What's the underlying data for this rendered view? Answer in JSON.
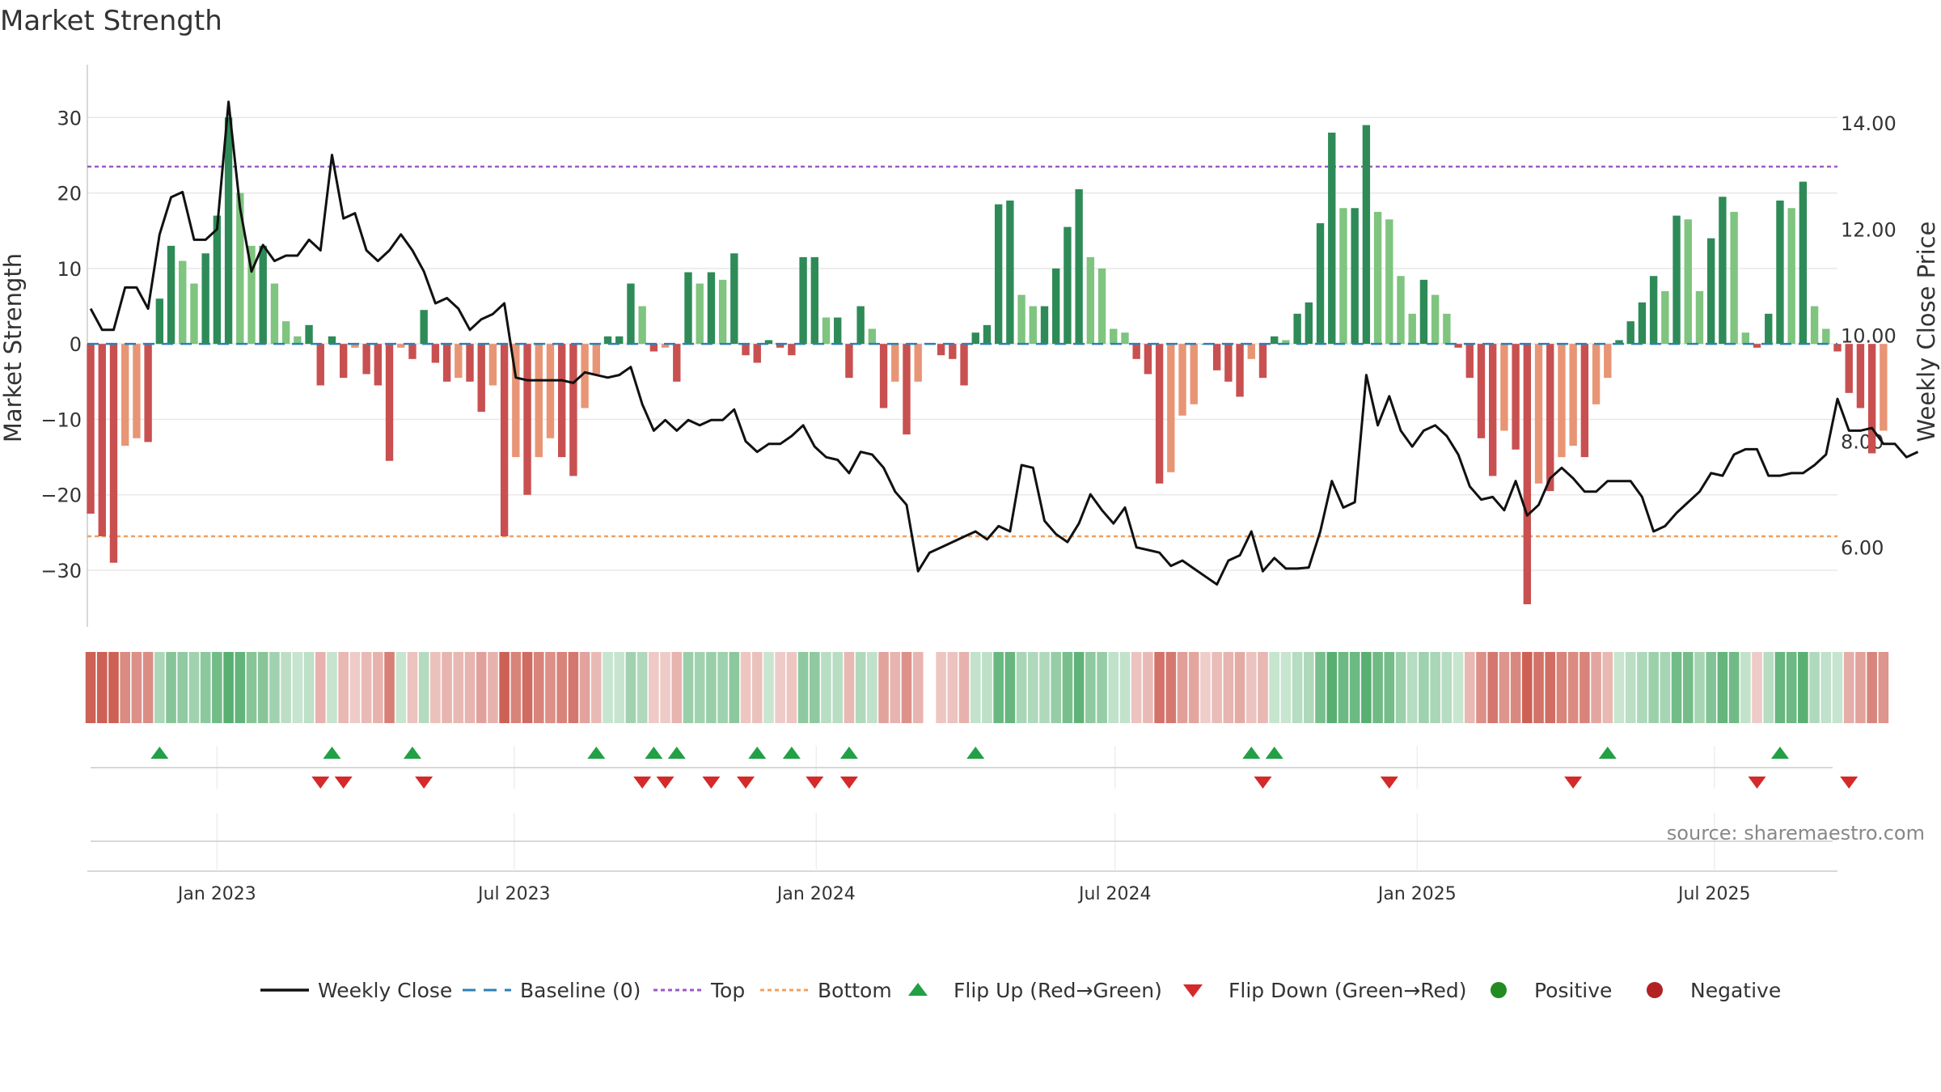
{
  "chart_data": {
    "type": "bar+line",
    "title": "Market Strength",
    "ylabel_left": "Market Strength",
    "ylabel_right": "Weekly Close Price",
    "source": "source: sharemaestro.com",
    "ylim_left": [
      -37.5,
      37
    ],
    "ylim_right": [
      4.5,
      15.1
    ],
    "y_ticks_left": [
      30,
      20,
      10,
      0,
      -10,
      -20,
      -30
    ],
    "y_tick_labels_left": [
      "30",
      "20",
      "10",
      "0",
      "−10",
      "−20",
      "−30"
    ],
    "y_ticks_right": [
      14,
      12,
      10,
      8,
      6
    ],
    "y_tick_labels_right": [
      "14.00",
      "12.00",
      "10.00",
      "8.00",
      "6.00"
    ],
    "x_start": "2022-10-14",
    "x_end": "2025-09-14",
    "x_ticks": [
      {
        "label": "Jan 2023",
        "date": "2023-01-01"
      },
      {
        "label": "Jul 2023",
        "date": "2023-07-01"
      },
      {
        "label": "Jan 2024",
        "date": "2024-01-01"
      },
      {
        "label": "Jul 2024",
        "date": "2024-07-01"
      },
      {
        "label": "Jan 2025",
        "date": "2025-01-01"
      },
      {
        "label": "Jul 2025",
        "date": "2025-07-01"
      }
    ],
    "first_week": "2022-10-16",
    "top_threshold": 23.5,
    "bottom_threshold": -25.5,
    "baseline": 0,
    "strength": [
      -22.5,
      -25.5,
      -29,
      -13.5,
      -12.5,
      -13,
      6,
      13,
      11,
      8,
      12,
      17,
      30,
      20,
      13,
      13,
      8,
      3,
      1,
      2.5,
      -5.5,
      1,
      -4.5,
      -0.5,
      -4,
      -5.5,
      -15.5,
      -0.5,
      -2,
      4.5,
      -2.5,
      -5,
      -4.5,
      -5,
      -9,
      -5.5,
      -25.5,
      -15,
      -20,
      -15,
      -12.5,
      -15,
      -17.5,
      -8.5,
      -4,
      1,
      1,
      8,
      5,
      -1,
      -0.5,
      -5,
      9.5,
      8,
      9.5,
      8.5,
      12,
      -1.5,
      -2.5,
      0.5,
      -0.5,
      -1.5,
      11.5,
      11.5,
      3.5,
      3.5,
      -4.5,
      5,
      2,
      -8.5,
      -5,
      -12,
      -5,
      0,
      -1.5,
      -2,
      -5.5,
      1.5,
      2.5,
      18.5,
      19,
      6.5,
      5,
      5,
      10,
      15.5,
      20.5,
      11.5,
      10,
      2,
      1.5,
      -2,
      -4,
      -18.5,
      -17,
      -9.5,
      -8,
      0,
      -3.5,
      -5,
      -7,
      -2,
      -4.5,
      1,
      0.5,
      4,
      5.5,
      16,
      28,
      18,
      18,
      29,
      17.5,
      16.5,
      9,
      4,
      8.5,
      6.5,
      4,
      -0.5,
      -4.5,
      -12.5,
      -17.5,
      -11.5,
      -14,
      -34.5,
      -18.5,
      -19.5,
      -15,
      -13.5,
      -15,
      -8,
      -4.5,
      0.5,
      3,
      5.5,
      9,
      7,
      17,
      16.5,
      7,
      14,
      19.5,
      17.5,
      1.5,
      -0.5,
      4,
      19,
      18,
      21.5,
      5,
      2,
      -1,
      -6.5,
      -8.5,
      -14.5,
      -11.5
    ],
    "weekly_close": [
      10.5,
      10.1,
      10.1,
      10.9,
      10.9,
      10.5,
      11.9,
      12.6,
      12.7,
      11.8,
      11.8,
      12.0,
      14.4,
      12.4,
      11.2,
      11.7,
      11.4,
      11.5,
      11.5,
      11.8,
      11.6,
      13.4,
      12.2,
      12.3,
      11.6,
      11.4,
      11.6,
      11.9,
      11.6,
      11.2,
      10.6,
      10.7,
      10.5,
      10.1,
      10.3,
      10.4,
      10.6,
      9.2,
      9.15,
      9.15,
      9.15,
      9.15,
      9.1,
      9.3,
      9.25,
      9.2,
      9.25,
      9.4,
      8.7,
      8.2,
      8.4,
      8.2,
      8.4,
      8.3,
      8.4,
      8.4,
      8.6,
      8.0,
      7.8,
      7.95,
      7.95,
      8.1,
      8.3,
      7.9,
      7.7,
      7.65,
      7.4,
      7.8,
      7.75,
      7.5,
      7.05,
      6.8,
      5.55,
      5.9,
      6.0,
      6.1,
      6.2,
      6.3,
      6.15,
      6.4,
      6.3,
      7.55,
      7.5,
      6.5,
      6.25,
      6.1,
      6.45,
      7.0,
      6.7,
      6.45,
      6.75,
      6.0,
      5.95,
      5.9,
      5.65,
      5.75,
      5.6,
      5.45,
      5.3,
      5.75,
      5.85,
      6.3,
      5.55,
      5.8,
      5.6,
      5.6,
      5.62,
      6.3,
      7.25,
      6.75,
      6.85,
      9.25,
      8.3,
      8.85,
      8.2,
      7.9,
      8.2,
      8.3,
      8.1,
      7.75,
      7.15,
      6.9,
      6.95,
      6.7,
      7.25,
      6.6,
      6.8,
      7.3,
      7.5,
      7.3,
      7.05,
      7.05,
      7.25,
      7.25,
      7.25,
      6.95,
      6.3,
      6.4,
      6.65,
      6.85,
      7.05,
      7.4,
      7.35,
      7.75,
      7.85,
      7.85,
      7.35,
      7.35,
      7.4,
      7.4,
      7.55,
      7.75,
      8.8,
      8.2,
      8.2,
      8.25,
      7.95,
      7.95,
      7.7,
      7.8
    ]
  },
  "state_strip": [
    "-",
    "-",
    "-",
    "-",
    "-",
    "-",
    "+",
    "+",
    "+",
    "+",
    "+",
    "+",
    "+",
    "+",
    "+",
    "+",
    "+",
    "+",
    "+",
    "+",
    "-",
    "+",
    "-",
    "-",
    "-",
    "-",
    "-",
    "+",
    "-",
    "+",
    "-",
    "-",
    "-",
    "-",
    "-",
    "-",
    "-",
    "-",
    "-",
    "-",
    "-",
    "-",
    "-",
    "-",
    "-",
    "+",
    "+",
    "+",
    "+",
    "-",
    "-",
    "-",
    "+",
    "+",
    "+",
    "+",
    "+",
    "-",
    "-",
    "+",
    "-",
    "-",
    "+",
    "+",
    "+",
    "+",
    "-",
    "+",
    "+",
    "-",
    "-",
    "-",
    "-",
    "0",
    "-",
    "-",
    "-",
    "+",
    "+",
    "+",
    "+",
    "+",
    "+",
    "+",
    "+",
    "+",
    "+",
    "+",
    "+",
    "+",
    "+",
    "-",
    "-",
    "-",
    "-",
    "-",
    "-",
    "-",
    "-",
    "-",
    "-",
    "-",
    "-",
    "+",
    "+",
    "+",
    "+",
    "+",
    "+",
    "+",
    "+",
    "+",
    "+",
    "+",
    "+",
    "+",
    "+",
    "+",
    "+",
    "+",
    "-",
    "-",
    "-",
    "-",
    "-",
    "-",
    "-",
    "-",
    "-",
    "-",
    "-",
    "-",
    "-",
    "+",
    "+",
    "+",
    "+",
    "+",
    "+",
    "+",
    "+",
    "+",
    "+",
    "+",
    "+",
    "-",
    "+",
    "+",
    "+",
    "+",
    "+",
    "+",
    "+",
    "-",
    "-",
    "-",
    "-"
  ],
  "flip_up_weeks": [
    6,
    21,
    28,
    44,
    49,
    51,
    58,
    61,
    66,
    77,
    101,
    103,
    132,
    147
  ],
  "flip_down_weeks": [
    20,
    22,
    29,
    48,
    50,
    54,
    57,
    63,
    66,
    102,
    113,
    129,
    145,
    153
  ],
  "legend": [
    {
      "key": "close",
      "label": "Weekly Close"
    },
    {
      "key": "baseline",
      "label": "Baseline (0)"
    },
    {
      "key": "top",
      "label": "Top"
    },
    {
      "key": "bottom",
      "label": "Bottom"
    },
    {
      "key": "flipup",
      "label": "Flip Up (Red→Green)"
    },
    {
      "key": "flipdown",
      "label": "Flip Down (Green→Red)"
    },
    {
      "key": "positive",
      "label": "Positive"
    },
    {
      "key": "negative",
      "label": "Negative"
    }
  ],
  "colors": {
    "strong_green": "#2e8b57",
    "light_green": "#7fc47f",
    "strong_red": "#c95050",
    "light_red": "#e89575",
    "line": "#111111",
    "baseline": "#2f7fb5",
    "top": "#9b59c6",
    "bottom": "#f0a060",
    "flip_up": "#22a045",
    "flip_down": "#d42a2a",
    "positive_dot": "#228b22",
    "negative_dot": "#b22222",
    "grid": "#e8e8e8",
    "axis": "#cccccc",
    "text": "#333333",
    "source": "#888888"
  }
}
